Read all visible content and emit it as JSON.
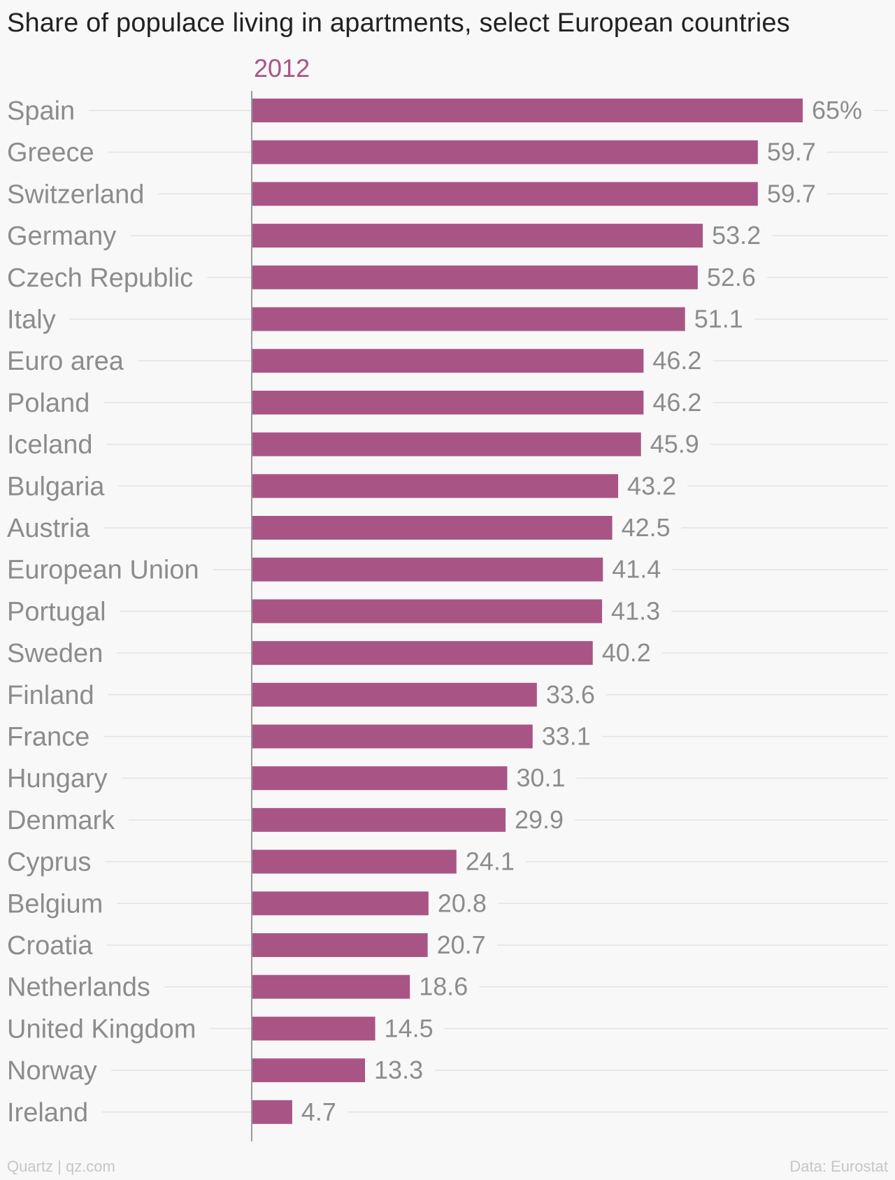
{
  "header": {
    "title": "Share of populace living in apartments, select European countries"
  },
  "footer": {
    "source_left": "Quartz | qz.com",
    "source_right": "Data: Eurostat"
  },
  "colors": {
    "bar": "#a85585",
    "series_label": "#a85585",
    "text": "#8c8c8c",
    "grid": "#e3e3e3",
    "axis": "#7a7a7a"
  },
  "chart_data": {
    "type": "bar",
    "orientation": "horizontal",
    "title": "Share of populace living in apartments, select European countries",
    "series": [
      {
        "name": "2012",
        "values": [
          65,
          59.7,
          59.7,
          53.2,
          52.6,
          51.1,
          46.2,
          46.2,
          45.9,
          43.2,
          42.5,
          41.4,
          41.3,
          40.2,
          33.6,
          33.1,
          30.1,
          29.9,
          24.1,
          20.8,
          20.7,
          18.6,
          14.5,
          13.3,
          4.7
        ]
      }
    ],
    "categories": [
      "Spain",
      "Greece",
      "Switzerland",
      "Germany",
      "Czech Republic",
      "Italy",
      "Euro area",
      "Poland",
      "Iceland",
      "Bulgaria",
      "Austria",
      "European Union",
      "Portugal",
      "Sweden",
      "Finland",
      "France",
      "Hungary",
      "Denmark",
      "Cyprus",
      "Belgium",
      "Croatia",
      "Netherlands",
      "United Kingdom",
      "Norway",
      "Ireland"
    ],
    "value_labels": [
      "65%",
      "59.7",
      "59.7",
      "53.2",
      "52.6",
      "51.1",
      "46.2",
      "46.2",
      "45.9",
      "43.2",
      "42.5",
      "41.4",
      "41.3",
      "40.2",
      "33.6",
      "33.1",
      "30.1",
      "29.9",
      "24.1",
      "20.8",
      "20.7",
      "18.6",
      "14.5",
      "13.3",
      "4.7"
    ],
    "xlim": [
      0,
      65
    ],
    "xlabel": "",
    "ylabel": "",
    "grid": true,
    "legend": "top"
  }
}
